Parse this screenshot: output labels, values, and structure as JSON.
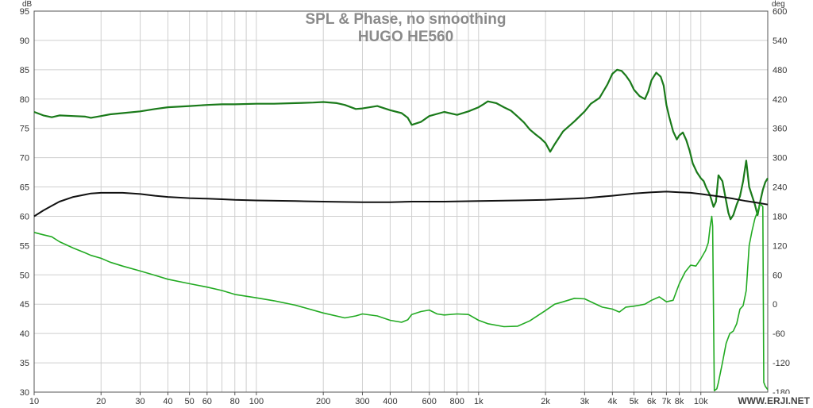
{
  "chart_data": {
    "type": "line",
    "title": "SPL & Phase, no smoothing",
    "subtitle": "HUGO HE560",
    "x_scale": "log",
    "xlim": [
      10,
      20000
    ],
    "x_ticks": [
      {
        "v": 10,
        "label": "10"
      },
      {
        "v": 20,
        "label": "20"
      },
      {
        "v": 30,
        "label": "30"
      },
      {
        "v": 40,
        "label": "40"
      },
      {
        "v": 50,
        "label": "50"
      },
      {
        "v": 60,
        "label": "60"
      },
      {
        "v": 80,
        "label": "80"
      },
      {
        "v": 100,
        "label": "100"
      },
      {
        "v": 200,
        "label": "200"
      },
      {
        "v": 300,
        "label": "300"
      },
      {
        "v": 400,
        "label": "400"
      },
      {
        "v": 600,
        "label": "600"
      },
      {
        "v": 800,
        "label": "800"
      },
      {
        "v": 1000,
        "label": "1k"
      },
      {
        "v": 2000,
        "label": "2k"
      },
      {
        "v": 3000,
        "label": "3k"
      },
      {
        "v": 4000,
        "label": "4k"
      },
      {
        "v": 5000,
        "label": "5k"
      },
      {
        "v": 6000,
        "label": "6k"
      },
      {
        "v": 7000,
        "label": "7k"
      },
      {
        "v": 8000,
        "label": "8k"
      },
      {
        "v": 10000,
        "label": "10k"
      }
    ],
    "left_axis": {
      "unit": "dB",
      "ylim": [
        30,
        95
      ],
      "ticks": [
        95,
        90,
        85,
        80,
        75,
        70,
        65,
        60,
        55,
        50,
        45,
        40,
        35,
        30
      ]
    },
    "right_axis": {
      "unit": "deg",
      "ylim": [
        -180,
        600
      ],
      "ticks": [
        600,
        540,
        480,
        420,
        360,
        300,
        240,
        180,
        120,
        60,
        0,
        -60,
        -120,
        -180
      ]
    },
    "grid": true,
    "series": [
      {
        "axis": "left",
        "color": "#1a7a1a",
        "width": 2.2,
        "x": [
          10,
          11,
          12,
          13,
          15,
          17,
          18,
          20,
          22,
          25,
          30,
          35,
          40,
          50,
          60,
          70,
          80,
          100,
          120,
          150,
          180,
          200,
          230,
          250,
          280,
          300,
          350,
          400,
          450,
          480,
          500,
          550,
          600,
          700,
          800,
          900,
          1000,
          1050,
          1100,
          1200,
          1300,
          1400,
          1500,
          1600,
          1700,
          1800,
          1900,
          2000,
          2100,
          2200,
          2400,
          2700,
          3000,
          3200,
          3500,
          3800,
          4000,
          4200,
          4400,
          4600,
          4800,
          5000,
          5300,
          5600,
          5800,
          6000,
          6300,
          6600,
          6800,
          7000,
          7200,
          7500,
          7800,
          8000,
          8300,
          8600,
          8900,
          9200,
          9600,
          10000,
          10300,
          10600,
          11000,
          11400,
          11700,
          12000,
          12500,
          13000,
          13300,
          13600,
          14000,
          14500,
          15000,
          15500,
          16000,
          16500,
          17000,
          17500,
          18000,
          18500,
          19000,
          19500,
          20000
        ],
        "y": [
          77.8,
          77.2,
          76.9,
          77.2,
          77.1,
          77.0,
          76.8,
          77.1,
          77.4,
          77.6,
          77.9,
          78.3,
          78.6,
          78.8,
          79.0,
          79.1,
          79.1,
          79.2,
          79.2,
          79.3,
          79.4,
          79.5,
          79.3,
          79.0,
          78.3,
          78.4,
          78.8,
          78.1,
          77.6,
          76.8,
          75.6,
          76.1,
          77.1,
          77.8,
          77.3,
          77.9,
          78.6,
          79.1,
          79.6,
          79.3,
          78.6,
          78.0,
          77.0,
          76.0,
          74.8,
          74.0,
          73.3,
          72.5,
          71.0,
          72.3,
          74.5,
          76.2,
          77.9,
          79.2,
          80.2,
          82.5,
          84.3,
          85.0,
          84.8,
          84.0,
          83.0,
          81.6,
          80.5,
          80.0,
          81.3,
          83.2,
          84.5,
          83.8,
          82.3,
          79.0,
          77.0,
          74.5,
          73.1,
          73.8,
          74.3,
          73.0,
          71.2,
          69.0,
          67.5,
          66.5,
          66.0,
          64.8,
          63.6,
          61.6,
          62.5,
          67.0,
          66.0,
          62.6,
          60.6,
          59.5,
          60.2,
          62.0,
          63.4,
          66.0,
          69.5,
          65.0,
          63.5,
          62.0,
          60.2,
          62.5,
          64.5,
          65.8,
          66.5
        ]
      },
      {
        "axis": "left",
        "color": "#111111",
        "width": 2.0,
        "x": [
          10,
          11,
          12,
          13,
          15,
          17,
          18,
          20,
          22,
          25,
          30,
          35,
          40,
          50,
          60,
          70,
          80,
          100,
          150,
          200,
          300,
          400,
          500,
          600,
          700,
          1000,
          1500,
          2000,
          3000,
          4000,
          5000,
          6000,
          7000,
          8000,
          9000,
          10000,
          12000,
          14000,
          16000,
          18000,
          20000
        ],
        "y": [
          60.0,
          61.0,
          61.8,
          62.5,
          63.3,
          63.7,
          63.9,
          64.0,
          64.0,
          64.0,
          63.8,
          63.5,
          63.3,
          63.1,
          63.0,
          62.9,
          62.8,
          62.7,
          62.6,
          62.5,
          62.4,
          62.4,
          62.5,
          62.5,
          62.5,
          62.6,
          62.7,
          62.8,
          63.1,
          63.5,
          63.9,
          64.1,
          64.2,
          64.1,
          64.0,
          63.8,
          63.4,
          63.0,
          62.6,
          62.3,
          62.0
        ]
      },
      {
        "axis": "right",
        "color": "#22aa22",
        "width": 1.6,
        "x": [
          10,
          11,
          12,
          13,
          15,
          17,
          18,
          20,
          22,
          25,
          30,
          35,
          40,
          50,
          60,
          70,
          80,
          100,
          120,
          150,
          200,
          250,
          280,
          300,
          350,
          400,
          450,
          480,
          500,
          550,
          600,
          650,
          700,
          800,
          900,
          1000,
          1100,
          1300,
          1500,
          1700,
          2000,
          2200,
          2400,
          2700,
          3000,
          3300,
          3600,
          4000,
          4300,
          4600,
          5000,
          5300,
          5600,
          6000,
          6500,
          7000,
          7500,
          8000,
          8500,
          9000,
          9500,
          10000,
          10500,
          10800,
          11000,
          11200,
          11300,
          11500,
          11800,
          12000,
          12500,
          13000,
          13500,
          14000,
          14500,
          15000,
          15500,
          16000,
          16500,
          17000,
          17500,
          18000,
          18500,
          19000,
          19200,
          19500,
          20000
        ],
        "y": [
          147,
          142,
          138,
          128,
          115,
          105,
          100,
          94,
          86,
          78,
          68,
          59,
          51,
          42,
          35,
          28,
          20,
          13,
          7,
          -2,
          -18,
          -28,
          -24,
          -20,
          -24,
          -33,
          -37,
          -32,
          -21,
          -15,
          -12,
          -20,
          -22,
          -20,
          -21,
          -33,
          -40,
          -46,
          -45,
          -34,
          -13,
          0,
          5,
          12,
          11,
          2,
          -6,
          -10,
          -16,
          -6,
          -4,
          -2,
          0,
          8,
          15,
          5,
          8,
          42,
          66,
          80,
          78,
          93,
          110,
          126,
          157,
          180,
          160,
          -177,
          -173,
          -160,
          -120,
          -80,
          -60,
          -55,
          -40,
          -10,
          -3,
          28,
          120,
          150,
          175,
          190,
          205,
          200,
          -160,
          -168,
          -175
        ]
      }
    ]
  },
  "watermark": "WWW.ERJI.NET"
}
